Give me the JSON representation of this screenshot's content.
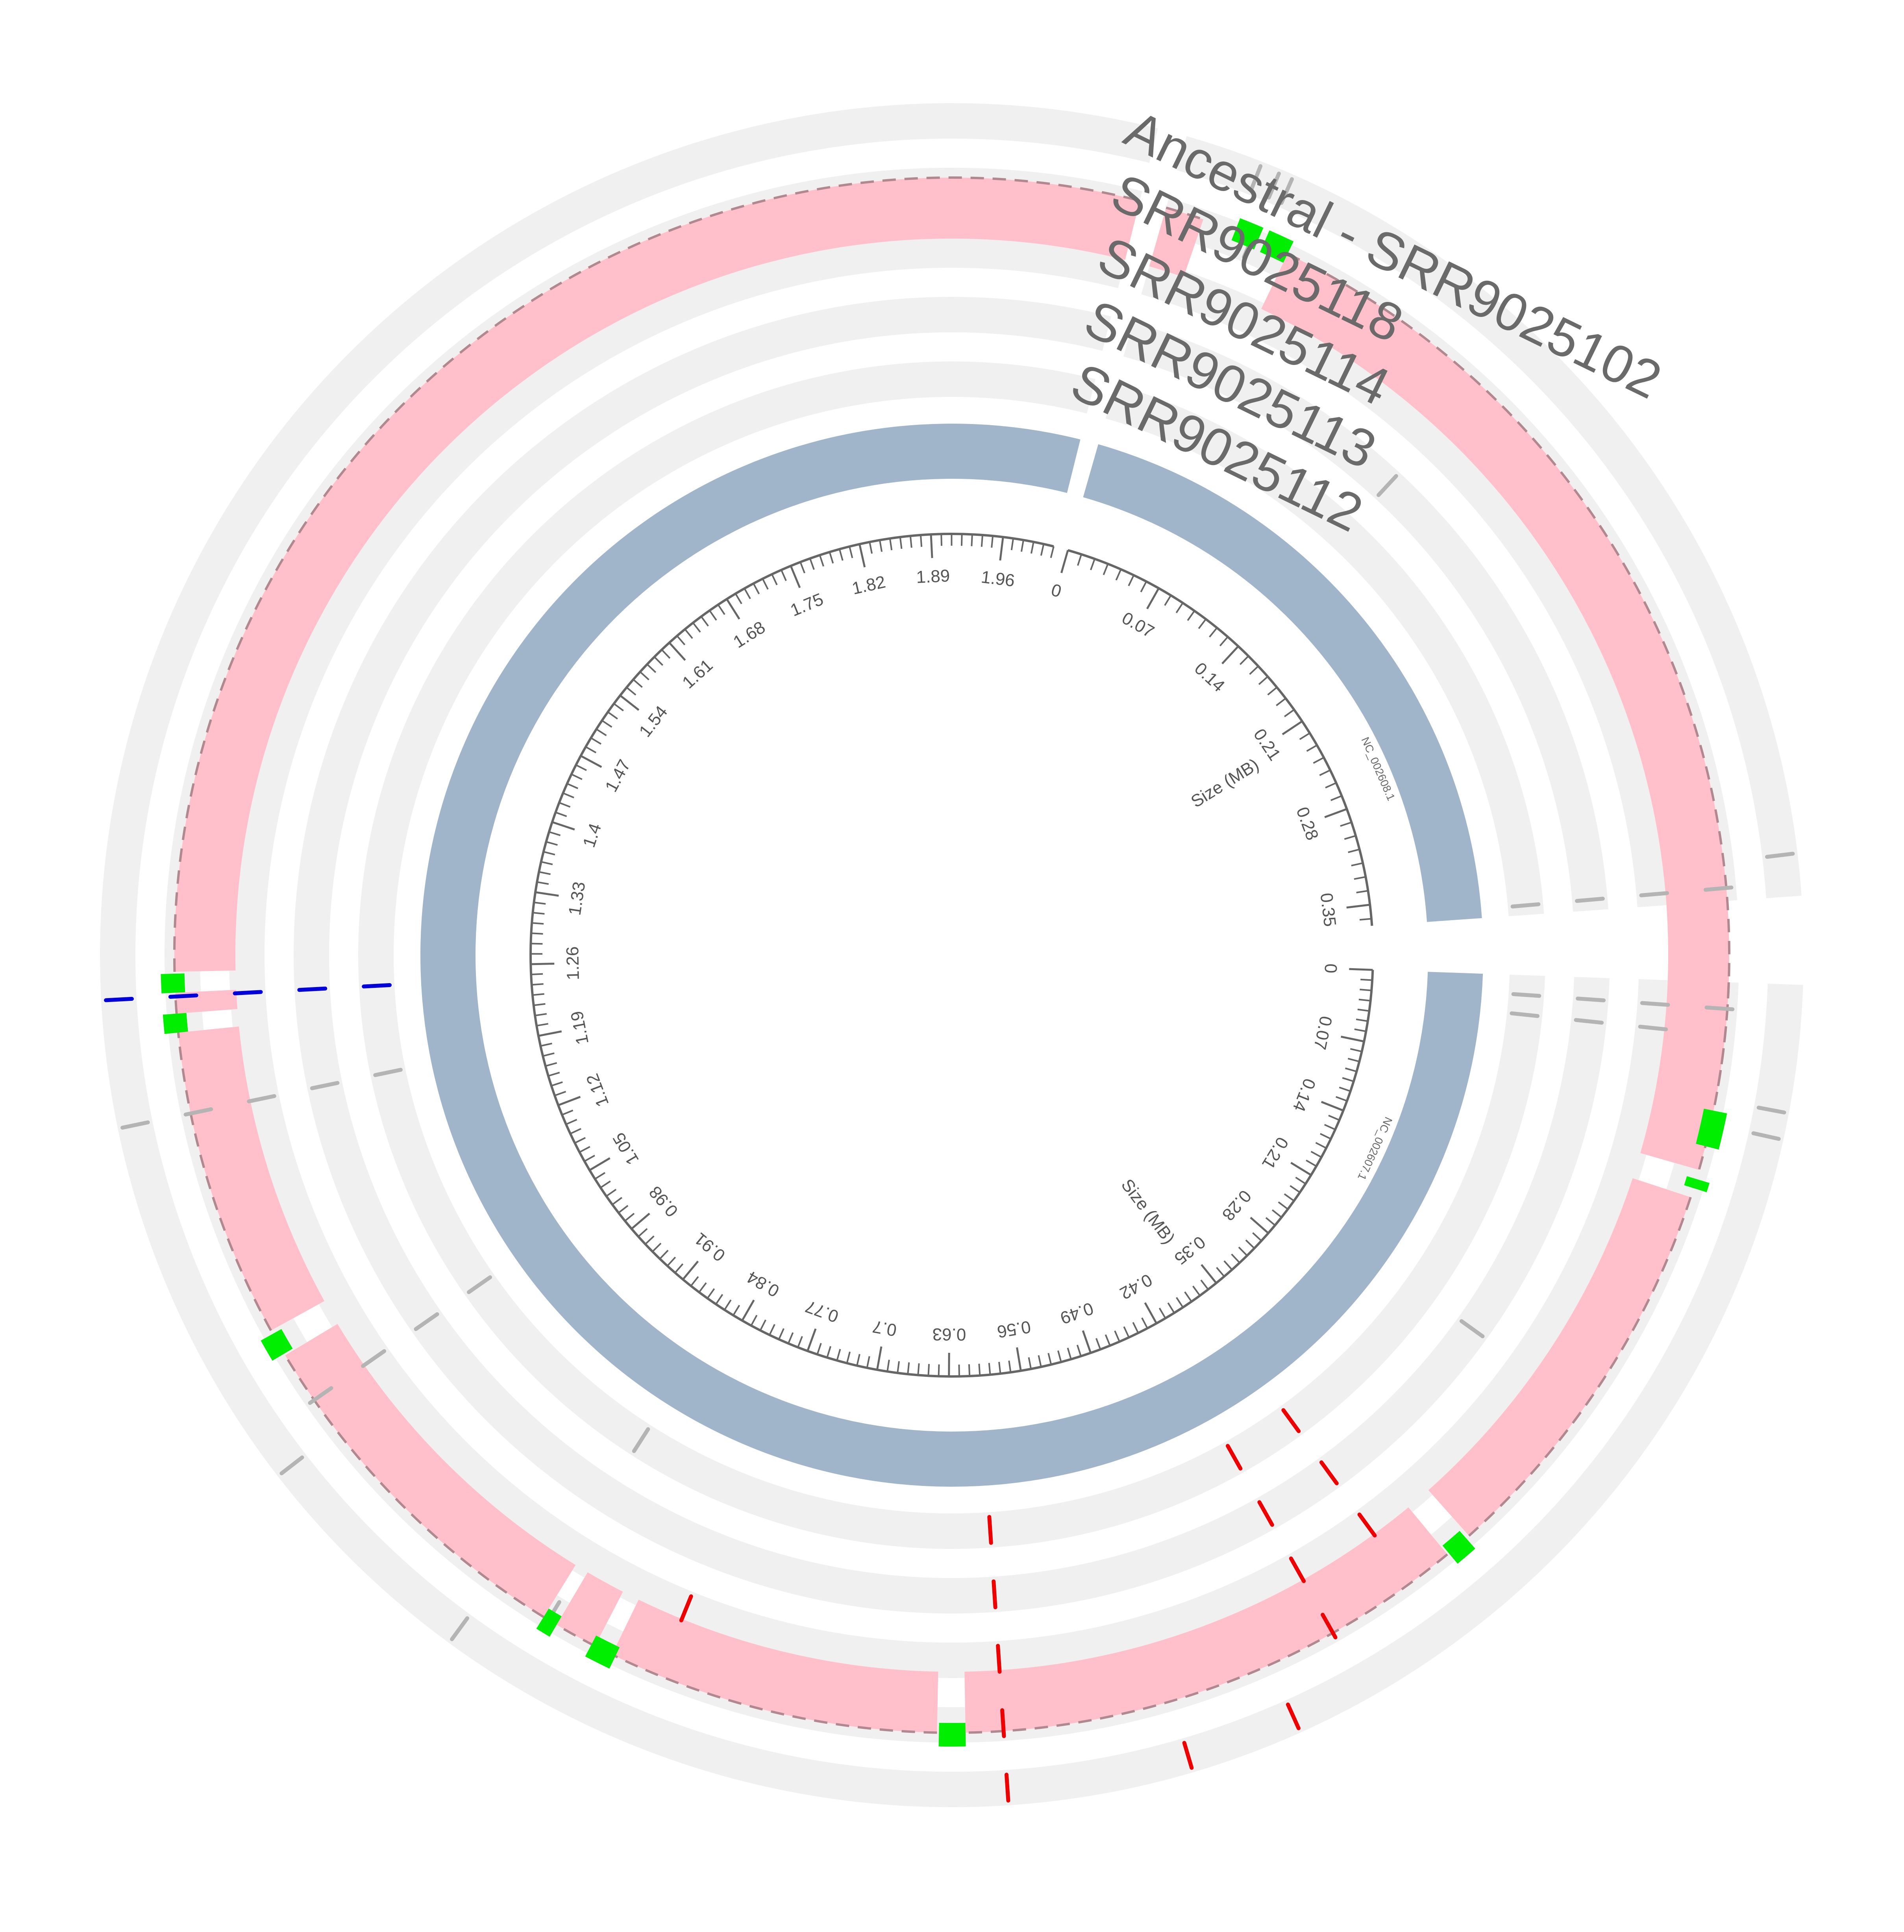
{
  "chart_data": {
    "type": "circos",
    "title": "",
    "axis_title": "Size (MB)",
    "colors": {
      "background": "#ffffff",
      "track_background": "#f0f0f0",
      "ideogram": "#a0b4ca",
      "axis": "#666666",
      "label": "#6a6a6a",
      "deletion_block": "#ffc0cb",
      "deletion_outline": "#b08890",
      "breakpoint": "#00ee00",
      "mutation_neutral": "#b4b4b4",
      "mutation_red": "#ee0000",
      "mutation_blue": "#0000dd"
    },
    "chromosomes": [
      {
        "name": "NC_002607.1",
        "length_mb": 2.01,
        "tick_step_mb": 0.07,
        "ticks_mb": [
          0,
          0.07,
          0.14,
          0.21,
          0.28,
          0.35,
          0.42,
          0.49,
          0.56,
          0.63,
          0.7,
          0.77,
          0.84,
          0.91,
          0.98,
          1.05,
          1.12,
          1.19,
          1.26,
          1.33,
          1.4,
          1.47,
          1.54,
          1.61,
          1.68,
          1.75,
          1.82,
          1.89,
          1.96
        ]
      },
      {
        "name": "NC_002608.1",
        "length_mb": 0.365,
        "tick_step_mb": 0.07,
        "ticks_mb": [
          0,
          0.07,
          0.14,
          0.21,
          0.28,
          0.35
        ]
      }
    ],
    "tracks": [
      {
        "label": "SRR9025112"
      },
      {
        "label": "SRR9025113"
      },
      {
        "label": "SRR9025114"
      },
      {
        "label": "SRR9025118"
      },
      {
        "label": "Ancestral - SRR9025102"
      }
    ],
    "deletion_blocks": [
      {
        "chrom": "NC_002608.1",
        "start_mb": 0.0,
        "end_mb": 0.015
      },
      {
        "chrom": "NC_002608.1",
        "start_mb": 0.05,
        "end_mb": 0.44
      },
      {
        "chrom": "NC_002607.1",
        "start_mb": 0.0,
        "end_mb": 0.1
      },
      {
        "chrom": "NC_002607.1",
        "start_mb": 0.115,
        "end_mb": 0.33
      },
      {
        "chrom": "NC_002607.1",
        "start_mb": 0.345,
        "end_mb": 0.62
      },
      {
        "chrom": "NC_002607.1",
        "start_mb": 0.635,
        "end_mb": 0.812
      },
      {
        "chrom": "NC_002607.1",
        "start_mb": 0.822,
        "end_mb": 0.845
      },
      {
        "chrom": "NC_002607.1",
        "start_mb": 0.853,
        "end_mb": 1.048
      },
      {
        "chrom": "NC_002607.1",
        "start_mb": 1.063,
        "end_mb": 1.228
      },
      {
        "chrom": "NC_002607.1",
        "start_mb": 1.238,
        "end_mb": 1.249
      },
      {
        "chrom": "NC_002607.1",
        "start_mb": 1.26,
        "end_mb": 2.01
      }
    ],
    "breakpoints": [
      {
        "chrom": "NC_002608.1",
        "pos_mb": 0.032,
        "start_mb": 0.028,
        "end_mb": 0.0375
      },
      {
        "chrom": "NC_002608.1",
        "pos_mb": 0.045,
        "start_mb": 0.04,
        "end_mb": 0.05
      },
      {
        "chrom": "NC_002608.1",
        "pos_mb": 0.453,
        "start_mb": 0.446,
        "end_mb": 0.46
      },
      {
        "chrom": "NC_002607.1",
        "pos_mb": 0.108,
        "start_mb": 0.105,
        "end_mb": 0.11
      },
      {
        "chrom": "NC_002607.1",
        "pos_mb": 0.338,
        "start_mb": 0.332,
        "end_mb": 0.344
      },
      {
        "chrom": "NC_002607.1",
        "pos_mb": 0.627,
        "start_mb": 0.62,
        "end_mb": 0.634
      },
      {
        "chrom": "NC_002607.1",
        "pos_mb": 0.817,
        "start_mb": 0.81,
        "end_mb": 0.824
      },
      {
        "chrom": "NC_002607.1",
        "pos_mb": 0.849,
        "start_mb": 0.845,
        "end_mb": 0.853
      },
      {
        "chrom": "NC_002607.1",
        "pos_mb": 1.055,
        "start_mb": 1.049,
        "end_mb": 1.061
      },
      {
        "chrom": "NC_002607.1",
        "pos_mb": 1.233,
        "start_mb": 1.228,
        "end_mb": 1.238
      },
      {
        "chrom": "NC_002607.1",
        "pos_mb": 1.254,
        "start_mb": 1.249,
        "end_mb": 1.259
      }
    ],
    "mutations": [
      {
        "chrom": "NC_002608.1",
        "pos_mb": 0.035,
        "color": "neutral",
        "tracks": [
          3,
          4
        ]
      },
      {
        "chrom": "NC_002608.1",
        "pos_mb": 0.028,
        "color": "neutral",
        "tracks": [
          4
        ]
      },
      {
        "chrom": "NC_002608.1",
        "pos_mb": 0.04,
        "color": "neutral",
        "tracks": [
          4
        ]
      },
      {
        "chrom": "NC_002608.1",
        "pos_mb": 0.14,
        "color": "neutral",
        "tracks": [
          1
        ]
      },
      {
        "chrom": "NC_002608.1",
        "pos_mb": 0.35,
        "color": "neutral",
        "tracks": [
          4
        ]
      },
      {
        "chrom": "NC_002608.1",
        "pos_mb": 0.36,
        "color": "neutral",
        "tracks": [
          0,
          1,
          2,
          3
        ]
      },
      {
        "chrom": "NC_002607.1",
        "pos_mb": 0.014,
        "color": "neutral",
        "tracks": [
          0,
          1,
          2,
          3
        ]
      },
      {
        "chrom": "NC_002607.1",
        "pos_mb": 0.028,
        "color": "neutral",
        "tracks": [
          0,
          1,
          2
        ]
      },
      {
        "chrom": "NC_002607.1",
        "pos_mb": 0.062,
        "color": "neutral",
        "tracks": [
          4
        ]
      },
      {
        "chrom": "NC_002607.1",
        "pos_mb": 0.075,
        "color": "neutral",
        "tracks": [
          4
        ]
      },
      {
        "chrom": "NC_002607.1",
        "pos_mb": 0.24,
        "color": "neutral",
        "tracks": [
          1
        ]
      },
      {
        "chrom": "NC_002607.1",
        "pos_mb": 0.37,
        "color": "red",
        "tracks": [
          0,
          1,
          2
        ]
      },
      {
        "chrom": "NC_002607.1",
        "pos_mb": 0.418,
        "color": "red",
        "tracks": [
          0,
          1,
          2,
          3
        ]
      },
      {
        "chrom": "NC_002607.1",
        "pos_mb": 0.455,
        "color": "red",
        "tracks": [
          4
        ]
      },
      {
        "chrom": "NC_002607.1",
        "pos_mb": 0.51,
        "color": "red",
        "tracks": [
          4
        ]
      },
      {
        "chrom": "NC_002607.1",
        "pos_mb": 0.6,
        "color": "red",
        "tracks": [
          0,
          1,
          2,
          3
        ]
      },
      {
        "chrom": "NC_002607.1",
        "pos_mb": 0.6,
        "color": "red",
        "tracks": [
          4
        ]
      },
      {
        "chrom": "NC_002607.1",
        "pos_mb": 0.785,
        "color": "red",
        "tracks": [
          2
        ]
      },
      {
        "chrom": "NC_002607.1",
        "pos_mb": 0.85,
        "color": "neutral",
        "tracks": [
          3
        ]
      },
      {
        "chrom": "NC_002607.1",
        "pos_mb": 0.885,
        "color": "neutral",
        "tracks": [
          4
        ]
      },
      {
        "chrom": "NC_002607.1",
        "pos_mb": 0.86,
        "color": "neutral",
        "tracks": [
          0
        ]
      },
      {
        "chrom": "NC_002607.1",
        "pos_mb": 1.0,
        "color": "neutral",
        "tracks": [
          4
        ]
      },
      {
        "chrom": "NC_002607.1",
        "pos_mb": 1.02,
        "color": "neutral",
        "tracks": [
          0,
          1,
          2,
          3
        ]
      },
      {
        "chrom": "NC_002607.1",
        "pos_mb": 1.185,
        "color": "neutral",
        "tracks": [
          0,
          1,
          2,
          3,
          4
        ]
      },
      {
        "chrom": "NC_002607.1",
        "pos_mb": 1.247,
        "color": "blue",
        "tracks": [
          0,
          1,
          2,
          3,
          4
        ]
      }
    ]
  }
}
